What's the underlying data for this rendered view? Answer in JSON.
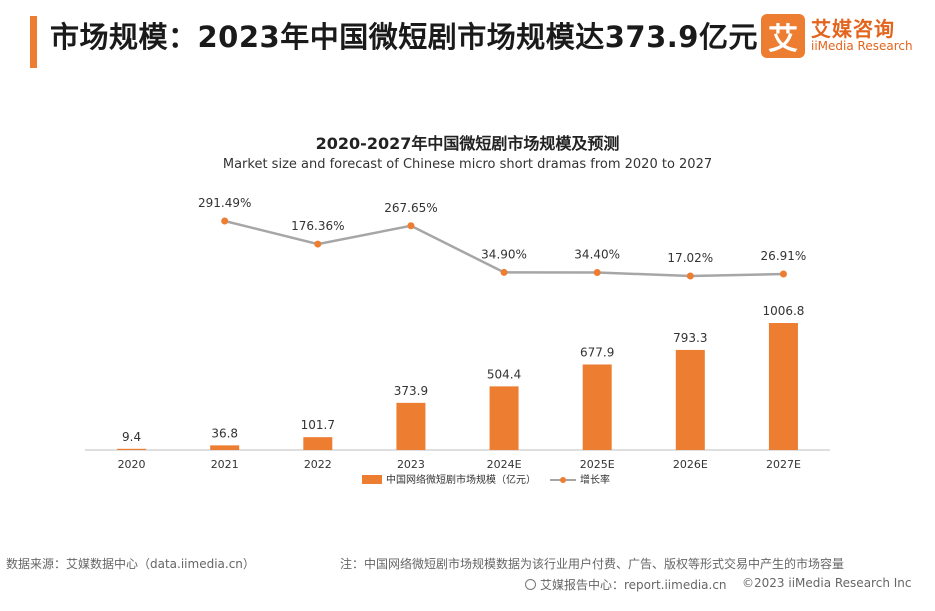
{
  "header": {
    "title": "市场规模：2023年中国微短剧市场规模达373.9亿元",
    "logo_mark": "艾",
    "logo_cn": "艾媒咨询",
    "logo_en": "iiMedia Research"
  },
  "chart_data": {
    "type": "bar",
    "title": "2020-2027年中国微短剧市场规模及预测",
    "subtitle": "Market size and forecast of Chinese micro short dramas from 2020 to 2027",
    "categories": [
      "2020",
      "2021",
      "2022",
      "2023",
      "2024E",
      "2025E",
      "2026E",
      "2027E"
    ],
    "series": [
      {
        "name": "中国网络微短剧市场规模（亿元）",
        "type": "bar",
        "values": [
          9.4,
          36.8,
          101.7,
          373.9,
          504.4,
          677.9,
          793.3,
          1006.8
        ],
        "labels": [
          "9.4",
          "36.8",
          "101.7",
          "373.9",
          "504.4",
          "677.9",
          "793.3",
          "1006.8"
        ]
      },
      {
        "name": "增长率",
        "type": "line",
        "values": [
          null,
          291.49,
          176.36,
          267.65,
          34.9,
          34.4,
          17.02,
          26.91
        ],
        "labels": [
          "",
          "291.49%",
          "176.36%",
          "267.65%",
          "34.90%",
          "34.40%",
          "17.02%",
          "26.91%"
        ]
      }
    ],
    "colors": {
      "bar": "#ed7d31",
      "line": "#a6a6a6",
      "marker": "#ed7d31"
    },
    "legend_position": "bottom"
  },
  "footer": {
    "source": "数据来源：艾媒数据中心（data.iimedia.cn）",
    "note": "注：中国网络微短剧市场规模数据为该行业用户付费、广告、版权等形式交易中产生的市场容量",
    "report": "艾媒报告中心：report.iimedia.cn",
    "copyright": "©2023  iiMedia Research Inc"
  }
}
